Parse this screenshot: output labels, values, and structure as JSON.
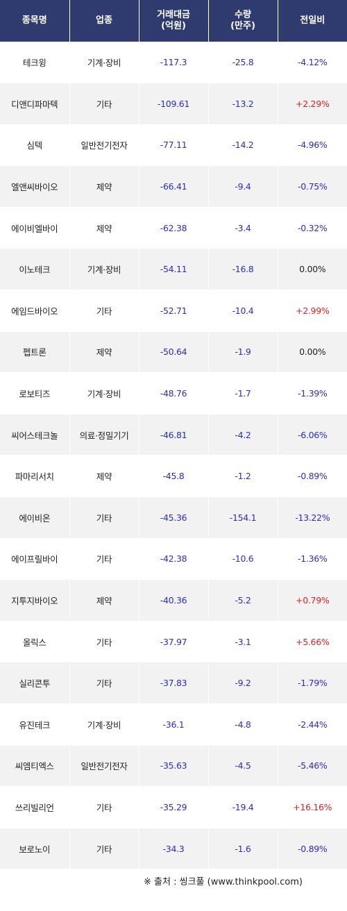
{
  "table": {
    "headers": {
      "name": "종목명",
      "sector": "업종",
      "amount_line1": "거래대금",
      "amount_line2": "(억원)",
      "volume_line1": "수량",
      "volume_line2": "(만주)",
      "change": "전일비"
    },
    "rows": [
      {
        "name": "테크윙",
        "sector": "기계·장비",
        "amount": "-117.3",
        "volume": "-25.8",
        "change": "-4.12%",
        "dir": "down"
      },
      {
        "name": "디앤디파마텍",
        "sector": "기타",
        "amount": "-109.61",
        "volume": "-13.2",
        "change": "+2.29%",
        "dir": "up"
      },
      {
        "name": "심텍",
        "sector": "일반전기전자",
        "amount": "-77.11",
        "volume": "-14.2",
        "change": "-4.96%",
        "dir": "down"
      },
      {
        "name": "엘앤씨바이오",
        "sector": "제약",
        "amount": "-66.41",
        "volume": "-9.4",
        "change": "-0.75%",
        "dir": "down"
      },
      {
        "name": "에이비엘바이",
        "sector": "제약",
        "amount": "-62.38",
        "volume": "-3.4",
        "change": "-0.32%",
        "dir": "down"
      },
      {
        "name": "이노테크",
        "sector": "기계·장비",
        "amount": "-54.11",
        "volume": "-16.8",
        "change": "0.00%",
        "dir": "flat"
      },
      {
        "name": "에임드바이오",
        "sector": "기타",
        "amount": "-52.71",
        "volume": "-10.4",
        "change": "+2.99%",
        "dir": "up"
      },
      {
        "name": "펩트론",
        "sector": "제약",
        "amount": "-50.64",
        "volume": "-1.9",
        "change": "0.00%",
        "dir": "flat"
      },
      {
        "name": "로보티즈",
        "sector": "기계·장비",
        "amount": "-48.76",
        "volume": "-1.7",
        "change": "-1.39%",
        "dir": "down"
      },
      {
        "name": "씨어스테크놀",
        "sector": "의료·정밀기기",
        "amount": "-46.81",
        "volume": "-4.2",
        "change": "-6.06%",
        "dir": "down"
      },
      {
        "name": "파마리서치",
        "sector": "제약",
        "amount": "-45.8",
        "volume": "-1.2",
        "change": "-0.89%",
        "dir": "down"
      },
      {
        "name": "에이비온",
        "sector": "기타",
        "amount": "-45.36",
        "volume": "-154.1",
        "change": "-13.22%",
        "dir": "down"
      },
      {
        "name": "에이프릴바이",
        "sector": "기타",
        "amount": "-42.38",
        "volume": "-10.6",
        "change": "-1.36%",
        "dir": "down"
      },
      {
        "name": "지투지바이오",
        "sector": "제약",
        "amount": "-40.36",
        "volume": "-5.2",
        "change": "+0.79%",
        "dir": "up"
      },
      {
        "name": "올릭스",
        "sector": "기타",
        "amount": "-37.97",
        "volume": "-3.1",
        "change": "+5.66%",
        "dir": "up"
      },
      {
        "name": "실리콘투",
        "sector": "기타",
        "amount": "-37.83",
        "volume": "-9.2",
        "change": "-1.79%",
        "dir": "down"
      },
      {
        "name": "유진테크",
        "sector": "기계·장비",
        "amount": "-36.1",
        "volume": "-4.8",
        "change": "-2.44%",
        "dir": "down"
      },
      {
        "name": "씨엠티엑스",
        "sector": "일반전기전자",
        "amount": "-35.63",
        "volume": "-4.5",
        "change": "-5.46%",
        "dir": "down"
      },
      {
        "name": "쓰리빌리언",
        "sector": "기타",
        "amount": "-35.29",
        "volume": "-19.4",
        "change": "+16.16%",
        "dir": "up"
      },
      {
        "name": "보로노이",
        "sector": "기타",
        "amount": "-34.3",
        "volume": "-1.6",
        "change": "-0.89%",
        "dir": "down"
      }
    ]
  },
  "source": "※ 출처 : 씽크풀 (www.thinkpool.com)",
  "colors": {
    "header_bg": "#2f3b6e",
    "stripe_bg": "#f2f2f2",
    "up": "#e02020",
    "down": "#2b2bd0",
    "flat": "#222222"
  }
}
